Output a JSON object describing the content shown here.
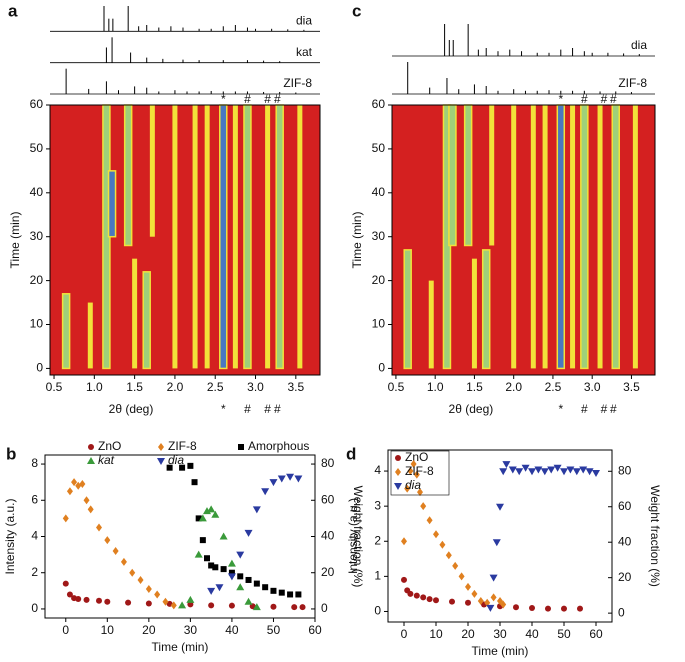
{
  "chart_data": [
    {
      "type": "heatmap",
      "panel": "a",
      "xlabel": "2θ (deg)",
      "ylabel": "Time (min)",
      "xlim": [
        0.45,
        3.8
      ],
      "ylim": [
        -1.5,
        60
      ],
      "xticks": [
        0.5,
        {
          "value": 1,
          "label": "1.0"
        },
        1.5,
        {
          "value": 2,
          "label": "2.0"
        },
        2.5,
        {
          "value": 3,
          "label": "3.0"
        },
        3.5
      ],
      "yticks": [
        0,
        10,
        20,
        30,
        40,
        50,
        60
      ],
      "patterns": [
        {
          "name": "dia",
          "peaks": [
            1.12,
            1.18,
            1.23,
            1.42,
            1.55,
            1.65,
            1.8,
            1.95,
            2.1,
            2.3,
            2.45,
            2.6,
            2.75,
            2.9,
            3.0,
            3.2,
            3.4,
            3.6
          ],
          "heights": [
            1,
            0.5,
            0.5,
            1,
            0.2,
            0.25,
            0.15,
            0.2,
            0.15,
            0.1,
            0.1,
            0.2,
            0.25,
            0.15,
            0.1,
            0.1,
            0.08,
            0.06
          ]
        },
        {
          "name": "kat",
          "peaks": [
            1.15,
            1.22,
            1.45,
            1.65,
            1.85,
            2.1,
            2.3,
            2.6,
            2.9,
            3.1,
            3.3
          ],
          "heights": [
            0.6,
            1,
            0.4,
            0.2,
            0.15,
            0.12,
            0.1,
            0.1,
            0.1,
            0.08,
            0.06
          ]
        },
        {
          "name": "ZIF-8",
          "peaks": [
            0.65,
            0.93,
            1.15,
            1.3,
            1.5,
            1.65,
            1.8,
            2.0,
            2.15,
            2.3,
            2.45,
            2.6,
            2.75,
            2.9,
            3.1,
            3.3,
            3.5
          ],
          "heights": [
            1,
            0.2,
            0.5,
            0.15,
            0.3,
            0.25,
            0.1,
            0.15,
            0.1,
            0.1,
            0.12,
            0.1,
            0.1,
            0.1,
            0.08,
            0.08,
            0.06
          ]
        }
      ],
      "markers": [
        {
          "x": 2.6,
          "label": "*"
        },
        {
          "x": 2.9,
          "label": "#"
        },
        {
          "x": 3.15,
          "label": "#"
        },
        {
          "x": 3.27,
          "label": "#"
        }
      ],
      "stripes": {
        "x": [
          0.65,
          0.95,
          1.15,
          1.22,
          1.42,
          1.5,
          1.65,
          1.72,
          2.0,
          2.25,
          2.4,
          2.6,
          2.75,
          2.9,
          3.15,
          3.3,
          3.55
        ],
        "start": [
          0,
          0,
          0,
          30,
          28,
          0,
          0,
          30,
          0,
          0,
          0,
          0,
          0,
          0,
          0,
          0,
          0
        ],
        "end": [
          17,
          15,
          60,
          45,
          60,
          25,
          22,
          60,
          60,
          60,
          60,
          60,
          60,
          60,
          60,
          60,
          60
        ],
        "level": [
          2,
          1,
          2,
          3,
          2,
          1,
          2,
          1,
          1,
          1,
          1,
          3,
          1,
          2,
          1,
          2,
          1
        ]
      }
    },
    {
      "type": "scatter",
      "panel": "b",
      "xlabel": "Time (min)",
      "ylabel": "Intensity (a.u.)",
      "y2label": "Weight fraction (%)",
      "legend": "top",
      "xlim": [
        -5,
        60
      ],
      "xticks": [
        0,
        10,
        20,
        30,
        40,
        50,
        60
      ],
      "ylim": [
        -0.5,
        8.5
      ],
      "yticks": [
        0,
        2,
        4,
        6,
        8
      ],
      "y2lim": [
        -5,
        85
      ],
      "y2ticks": [
        0,
        20,
        40,
        60,
        80
      ],
      "series": [
        {
          "name": "ZnO",
          "color": "#a01818",
          "marker": "circle",
          "x": [
            0,
            1,
            2,
            3,
            5,
            8,
            10,
            15,
            20,
            25,
            30,
            35,
            40,
            45,
            50,
            55,
            57
          ],
          "values": [
            1.4,
            0.8,
            0.6,
            0.55,
            0.5,
            0.45,
            0.4,
            0.35,
            0.3,
            0.28,
            0.25,
            0.2,
            0.18,
            0.15,
            0.12,
            0.1,
            0.1
          ]
        },
        {
          "name": "ZIF-8",
          "color": "#e08020",
          "marker": "diamond",
          "x": [
            0,
            1,
            2,
            3,
            4,
            5,
            6,
            8,
            10,
            12,
            14,
            16,
            18,
            20,
            22,
            24,
            26
          ],
          "values": [
            5.0,
            6.5,
            7.0,
            6.8,
            6.9,
            6.0,
            5.5,
            4.5,
            3.8,
            3.2,
            2.6,
            2.0,
            1.6,
            1.1,
            0.8,
            0.4,
            0.2
          ]
        },
        {
          "name": "Amorphous",
          "color": "#000000",
          "marker": "square",
          "axis": "y2",
          "x": [
            25,
            28,
            30,
            31,
            32,
            33,
            34,
            35,
            36,
            38,
            40,
            42,
            44,
            46,
            48,
            50,
            52,
            54,
            56
          ],
          "values": [
            78,
            78,
            79,
            70,
            50,
            38,
            28,
            24,
            23,
            22,
            20,
            18,
            16,
            14,
            12,
            10,
            9,
            8,
            8
          ]
        },
        {
          "name": "kat",
          "color": "#3a9a3a",
          "marker": "triangle-up",
          "axis": "y2",
          "x": [
            28,
            30,
            32,
            33,
            34,
            35,
            36,
            38,
            40,
            42,
            44,
            46
          ],
          "values": [
            2,
            5,
            30,
            50,
            54,
            55,
            52,
            40,
            25,
            12,
            4,
            1
          ]
        },
        {
          "name": "dia",
          "color": "#2a3aa0",
          "marker": "triangle-down",
          "axis": "y2",
          "x": [
            35,
            37,
            40,
            42,
            44,
            46,
            48,
            50,
            52,
            54,
            56
          ],
          "values": [
            10,
            12,
            18,
            30,
            42,
            55,
            65,
            70,
            72,
            73,
            72
          ]
        }
      ]
    },
    {
      "type": "heatmap",
      "panel": "c",
      "xlabel": "2θ (deg)",
      "ylabel": "Time (min)",
      "xlim": [
        0.45,
        3.8
      ],
      "ylim": [
        -1.5,
        60
      ],
      "xticks": [
        0.5,
        {
          "value": 1,
          "label": "1.0"
        },
        1.5,
        {
          "value": 2,
          "label": "2.0"
        },
        2.5,
        {
          "value": 3,
          "label": "3.0"
        },
        3.5
      ],
      "yticks": [
        0,
        10,
        20,
        30,
        40,
        50,
        60
      ],
      "patterns": [
        {
          "name": "dia",
          "peaks": [
            1.12,
            1.18,
            1.23,
            1.42,
            1.55,
            1.65,
            1.8,
            1.95,
            2.1,
            2.3,
            2.45,
            2.6,
            2.75,
            2.9,
            3.0,
            3.2,
            3.4,
            3.6
          ],
          "heights": [
            1,
            0.5,
            0.5,
            1,
            0.2,
            0.25,
            0.15,
            0.2,
            0.15,
            0.1,
            0.1,
            0.2,
            0.25,
            0.15,
            0.1,
            0.1,
            0.08,
            0.06
          ]
        },
        {
          "name": "ZIF-8",
          "peaks": [
            0.65,
            0.93,
            1.15,
            1.3,
            1.5,
            1.65,
            1.8,
            2.0,
            2.15,
            2.3,
            2.45,
            2.6,
            2.75,
            2.9,
            3.1,
            3.3,
            3.5
          ],
          "heights": [
            1,
            0.2,
            0.5,
            0.15,
            0.3,
            0.25,
            0.1,
            0.15,
            0.1,
            0.1,
            0.12,
            0.1,
            0.1,
            0.1,
            0.08,
            0.08,
            0.06
          ]
        }
      ],
      "markers": [
        {
          "x": 2.6,
          "label": "*"
        },
        {
          "x": 2.9,
          "label": "#"
        },
        {
          "x": 3.15,
          "label": "#"
        },
        {
          "x": 3.27,
          "label": "#"
        }
      ],
      "stripes": {
        "x": [
          0.65,
          0.95,
          1.15,
          1.22,
          1.42,
          1.5,
          1.65,
          1.72,
          2.0,
          2.25,
          2.4,
          2.6,
          2.75,
          2.9,
          3.1,
          3.3,
          3.55
        ],
        "start": [
          0,
          0,
          0,
          28,
          28,
          0,
          0,
          28,
          0,
          0,
          0,
          0,
          0,
          0,
          0,
          0,
          0
        ],
        "end": [
          27,
          20,
          60,
          60,
          60,
          25,
          27,
          60,
          60,
          60,
          60,
          60,
          60,
          60,
          60,
          60,
          60
        ],
        "level": [
          2,
          1,
          2,
          2,
          2,
          1,
          2,
          1,
          1,
          1,
          1,
          3,
          1,
          2,
          1,
          2,
          1
        ]
      }
    },
    {
      "type": "scatter",
      "panel": "d",
      "xlabel": "Time (min)",
      "ylabel": "Intensity (a.u.)",
      "y2label": "Weight fraction (%)",
      "legend": "upper-left",
      "xlim": [
        -5,
        65
      ],
      "xticks": [
        0,
        10,
        20,
        30,
        40,
        50,
        60
      ],
      "ylim": [
        -0.3,
        4.6
      ],
      "yticks": [
        0,
        1,
        2,
        3,
        4
      ],
      "y2lim": [
        -5,
        92
      ],
      "y2ticks": [
        0,
        20,
        40,
        60,
        80
      ],
      "series": [
        {
          "name": "ZnO",
          "color": "#a01818",
          "marker": "circle",
          "x": [
            0,
            1,
            2,
            4,
            6,
            8,
            10,
            15,
            20,
            25,
            30,
            35,
            40,
            45,
            50,
            55
          ],
          "values": [
            0.9,
            0.6,
            0.5,
            0.45,
            0.4,
            0.35,
            0.32,
            0.28,
            0.25,
            0.2,
            0.15,
            0.12,
            0.1,
            0.08,
            0.08,
            0.08
          ]
        },
        {
          "name": "ZIF-8",
          "color": "#e08020",
          "marker": "diamond",
          "x": [
            0,
            1,
            2,
            3,
            4,
            5,
            6,
            8,
            10,
            12,
            14,
            16,
            18,
            20,
            22,
            24,
            26,
            28,
            30,
            31
          ],
          "values": [
            2.0,
            3.5,
            4.0,
            4.2,
            3.9,
            3.4,
            3.0,
            2.6,
            2.2,
            1.9,
            1.6,
            1.3,
            1.0,
            0.7,
            0.5,
            0.3,
            0.25,
            0.4,
            0.3,
            0.2
          ]
        },
        {
          "name": "dia",
          "color": "#2a3aa0",
          "marker": "triangle-down",
          "axis": "y2",
          "x": [
            27,
            28,
            29,
            30,
            31,
            32,
            34,
            36,
            38,
            40,
            42,
            44,
            46,
            48,
            50,
            52,
            54,
            56,
            58,
            60
          ],
          "values": [
            3,
            20,
            40,
            60,
            80,
            84,
            81,
            80,
            82,
            80,
            81,
            80,
            81,
            82,
            80,
            81,
            80,
            81,
            80,
            79
          ]
        }
      ]
    }
  ]
}
